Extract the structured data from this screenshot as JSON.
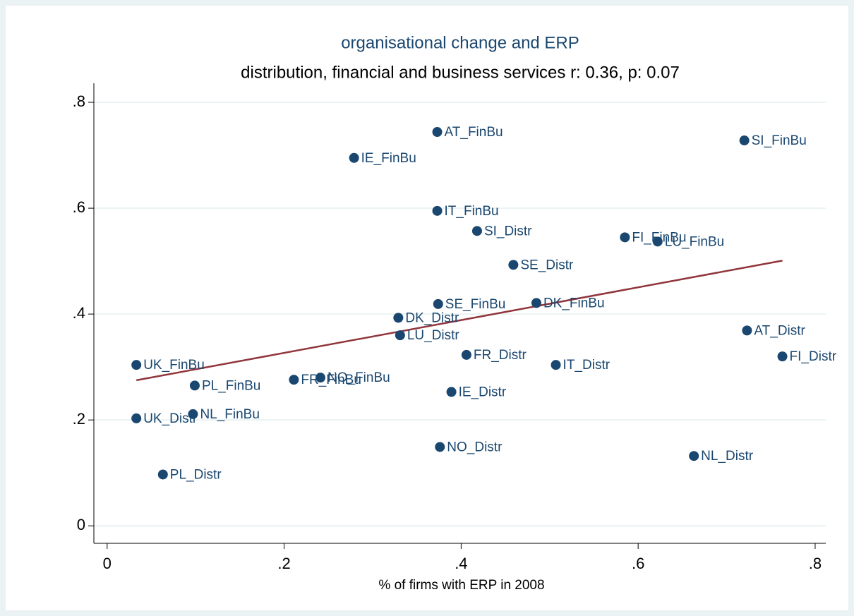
{
  "chart_data": {
    "type": "scatter",
    "title": "organisational change and ERP",
    "subtitle": "distribution, financial and business services r: 0.36, p: 0.07",
    "xlabel": "% of firms with ERP in 2008",
    "xlim": [
      -0.015,
      0.812
    ],
    "ylim": [
      -0.033,
      0.836
    ],
    "xticks": [
      0,
      {
        "value": 0.2,
        "label": ".2"
      },
      {
        "value": 0.4,
        "label": ".4"
      },
      {
        "value": 0.6,
        "label": ".6"
      },
      {
        "value": 0.8,
        "label": ".8"
      }
    ],
    "yticks": [
      0,
      {
        "value": 0.2,
        "label": ".2"
      },
      {
        "value": 0.4,
        "label": ".4"
      },
      {
        "value": 0.6,
        "label": ".6"
      },
      {
        "value": 0.8,
        "label": ".8"
      }
    ],
    "grid": true,
    "series": [
      {
        "color": "#1a476f",
        "labels": [
          "AT_FinBu",
          "SI_FinBu",
          "IE_FinBu",
          "IT_FinBu",
          "SI_Distr",
          "FI_FinBu",
          "LU_FinBu",
          "SE_Distr",
          "SE_FinBu",
          "DK_FinBu",
          "DK_Distr",
          "LU_Distr",
          "AT_Distr",
          "FI_Distr",
          "FR_Distr",
          "IT_Distr",
          "UK_FinBu",
          "PL_FinBu",
          "FR_FinBu",
          "NO_FinBu",
          "IE_Distr",
          "UK_Distr",
          "NL_FinBu",
          "NO_Distr",
          "NL_Distr",
          "PL_Distr"
        ],
        "x": [
          0.373,
          0.72,
          0.279,
          0.373,
          0.418,
          0.585,
          0.622,
          0.459,
          0.374,
          0.485,
          0.329,
          0.331,
          0.723,
          0.763,
          0.406,
          0.507,
          0.033,
          0.099,
          0.211,
          0.241,
          0.389,
          0.033,
          0.097,
          0.376,
          0.663,
          0.063
        ],
        "values": [
          0.744,
          0.728,
          0.695,
          0.595,
          0.557,
          0.545,
          0.537,
          0.493,
          0.419,
          0.421,
          0.393,
          0.36,
          0.369,
          0.32,
          0.323,
          0.304,
          0.304,
          0.265,
          0.276,
          0.28,
          0.253,
          0.203,
          0.211,
          0.149,
          0.132,
          0.097
        ]
      }
    ],
    "fit": {
      "color": "#90353b",
      "x": [
        0.033,
        0.763
      ],
      "values": [
        0.275,
        0.501
      ]
    }
  }
}
